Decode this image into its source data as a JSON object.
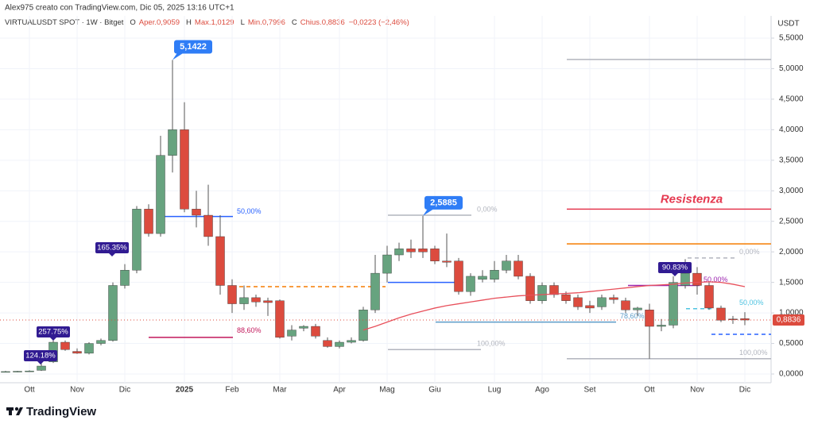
{
  "chart_data": {
    "type": "candlestick",
    "header": {
      "credit": "Alex975 creato con TradingView.com, Dic 05, 2025 13:16 UTC+1",
      "symbol": "VIRTUALUSDT SPOT · 1W · Bitget",
      "ohlc": [
        {
          "key": "O",
          "text": "Aper.0,9059"
        },
        {
          "key": "H",
          "text": "Max.1,0129"
        },
        {
          "key": "L",
          "text": "Min.0,7996"
        },
        {
          "key": "C",
          "text": "Chius.0,8836"
        }
      ],
      "change": "−0,0223 (−2,46%)"
    },
    "y_unit": "USDT",
    "brand": "TradingView",
    "categories": [
      null,
      null,
      "Ott",
      null,
      null,
      null,
      "Nov",
      null,
      null,
      null,
      "Dic",
      null,
      null,
      null,
      null,
      "2025",
      null,
      null,
      null,
      "Feb",
      null,
      null,
      null,
      "Mar",
      null,
      null,
      null,
      null,
      "Apr",
      null,
      null,
      null,
      "Mag",
      null,
      null,
      null,
      "Giu",
      null,
      null,
      null,
      null,
      "Lug",
      null,
      null,
      null,
      "Ago",
      null,
      null,
      null,
      "Set",
      null,
      null,
      null,
      null,
      "Ott",
      null,
      null,
      null,
      "Nov",
      null,
      null,
      null,
      "Dic"
    ],
    "open": [
      0.04,
      0.04,
      0.045,
      0.06,
      0.2,
      0.52,
      0.37,
      0.34,
      0.5,
      0.55,
      1.45,
      1.7,
      2.7,
      2.3,
      3.58,
      4.0,
      2.7,
      2.6,
      2.25,
      1.45,
      1.15,
      1.25,
      1.2,
      1.2,
      0.62,
      0.75,
      0.78,
      0.55,
      0.45,
      0.52,
      0.55,
      1.05,
      1.65,
      1.95,
      2.05,
      2.05,
      2.05,
      1.85,
      1.85,
      1.35,
      1.55,
      1.55,
      1.7,
      1.85,
      1.6,
      1.2,
      1.45,
      1.3,
      1.25,
      1.12,
      1.1,
      1.25,
      1.2,
      1.05,
      1.05,
      0.78,
      0.8,
      1.45,
      1.65,
      1.45,
      1.08,
      0.9,
      0.9059
    ],
    "high": [
      0.05,
      0.05,
      0.06,
      0.2,
      0.6,
      0.55,
      0.42,
      0.52,
      0.58,
      1.5,
      1.8,
      2.75,
      2.78,
      3.9,
      5.1422,
      4.45,
      3.0,
      3.1,
      2.6,
      1.55,
      1.45,
      1.3,
      1.25,
      1.22,
      0.8,
      0.8,
      0.82,
      0.6,
      0.55,
      0.6,
      1.1,
      1.95,
      2.1,
      2.15,
      2.2,
      2.5885,
      2.1,
      2.3,
      1.9,
      1.65,
      1.7,
      1.85,
      1.95,
      1.95,
      1.65,
      1.5,
      1.5,
      1.35,
      1.3,
      1.2,
      1.3,
      1.3,
      1.25,
      1.1,
      1.15,
      0.9,
      1.6,
      1.88,
      1.75,
      1.5,
      1.12,
      0.95,
      1.0129
    ],
    "low": [
      0.03,
      0.03,
      0.04,
      0.05,
      0.18,
      0.38,
      0.33,
      0.32,
      0.47,
      0.53,
      1.4,
      1.65,
      2.25,
      2.25,
      3.3,
      2.65,
      2.4,
      2.1,
      1.3,
      1.0,
      1.05,
      1.1,
      0.95,
      0.58,
      0.55,
      0.7,
      0.58,
      0.43,
      0.42,
      0.5,
      0.53,
      1.0,
      1.5,
      1.85,
      1.9,
      1.9,
      1.8,
      1.75,
      1.3,
      1.28,
      1.5,
      1.5,
      1.65,
      1.55,
      1.15,
      1.15,
      1.25,
      1.15,
      1.05,
      1.0,
      1.05,
      1.15,
      1.0,
      0.95,
      0.25,
      0.7,
      0.75,
      1.4,
      1.3,
      1.05,
      0.85,
      0.82,
      0.7996
    ],
    "close": [
      0.04,
      0.045,
      0.05,
      0.13,
      0.52,
      0.4,
      0.34,
      0.5,
      0.55,
      1.45,
      1.7,
      2.7,
      2.3,
      3.58,
      4.0,
      2.7,
      2.6,
      2.25,
      1.45,
      1.15,
      1.25,
      1.18,
      1.17,
      0.6,
      0.72,
      0.78,
      0.62,
      0.45,
      0.52,
      0.55,
      1.05,
      1.65,
      1.95,
      2.05,
      2.0,
      2.0,
      1.85,
      1.83,
      1.35,
      1.6,
      1.6,
      1.7,
      1.85,
      1.6,
      1.2,
      1.45,
      1.3,
      1.2,
      1.1,
      1.08,
      1.25,
      1.22,
      1.05,
      1.08,
      0.78,
      0.8,
      1.5,
      1.65,
      1.45,
      1.08,
      0.88,
      0.89,
      0.8836
    ],
    "up_color": "#67a37f",
    "down_color": "#dc4b3e",
    "ma": [
      null,
      null,
      null,
      null,
      null,
      null,
      null,
      null,
      null,
      null,
      null,
      null,
      null,
      null,
      null,
      null,
      null,
      null,
      null,
      null,
      null,
      null,
      null,
      null,
      null,
      null,
      null,
      null,
      null,
      null,
      0.72,
      0.78,
      0.85,
      0.92,
      0.98,
      1.03,
      1.08,
      1.12,
      1.15,
      1.18,
      1.21,
      1.24,
      1.26,
      1.28,
      1.29,
      1.3,
      1.31,
      1.32,
      1.33,
      1.35,
      1.37,
      1.39,
      1.41,
      1.43,
      1.45,
      1.46,
      1.47,
      1.49,
      1.5,
      1.51,
      1.5,
      1.47,
      1.43
    ],
    "ma_color": "#e8505b",
    "ylim": [
      -0.143,
      5.864
    ],
    "yticks": [
      {
        "value": 0,
        "label": "0,0000"
      },
      {
        "value": 0.5,
        "label": "0,5000"
      },
      {
        "value": 1,
        "label": "1,0000"
      },
      {
        "value": 1.5,
        "label": "1,5000"
      },
      {
        "value": 2,
        "label": "2,0000"
      },
      {
        "value": 2.5,
        "label": "2,5000"
      },
      {
        "value": 3,
        "label": "3,0000"
      },
      {
        "value": 3.5,
        "label": "3,5000"
      },
      {
        "value": 4,
        "label": "4,0000"
      },
      {
        "value": 4.5,
        "label": "4,5000"
      },
      {
        "value": 5,
        "label": "5,0000"
      },
      {
        "value": 5.5,
        "label": "5,5000"
      }
    ],
    "grid": true,
    "last_price": {
      "value": 0.8836,
      "label": "0,8836"
    },
    "levels": [
      {
        "value": 2.58,
        "color": "#2962ff",
        "style": "solid",
        "label": "50,00%"
      },
      {
        "value": 0.6,
        "color": "#c2185b",
        "style": "solid",
        "label": "88,60%"
      },
      {
        "value": 1.43,
        "color": "#f57c00",
        "style": "dashed"
      },
      {
        "value": 2.6,
        "color": "#b2b5be",
        "style": "solid",
        "label": "0,00%"
      },
      {
        "value": 0.4,
        "color": "#b2b5be",
        "style": "solid",
        "label": "100,00%"
      },
      {
        "value": 1.5,
        "color": "#2962ff",
        "style": "solid"
      },
      {
        "value": 0.85,
        "color": "#5b9bc8",
        "style": "solid",
        "label": "78,60%"
      },
      {
        "value": 5.15,
        "color": "#b2b5be",
        "style": "solid"
      },
      {
        "value": 2.7,
        "color": "#e53950",
        "style": "solid",
        "label": "Resistenza"
      },
      {
        "value": 2.13,
        "color": "#f57c00",
        "style": "solid"
      },
      {
        "value": 0.25,
        "color": "#b2b5be",
        "style": "solid",
        "label": "100,00%"
      },
      {
        "value": 1.45,
        "color": "#9c27b0",
        "style": "solid",
        "label": "50,00%"
      },
      {
        "value": 1.9,
        "color": "#b2b5be",
        "style": "dashed",
        "label": "0,00%"
      },
      {
        "value": 1.07,
        "color": "#4dc3e1",
        "style": "dashed",
        "label": "50,00%"
      },
      {
        "value": 0.65,
        "color": "#2962ff",
        "style": "dashed"
      }
    ],
    "callouts": [
      {
        "value": 5.1422,
        "label": "5,1422"
      },
      {
        "value": 2.5885,
        "label": "2,5885"
      }
    ],
    "badges": [
      "124.18%",
      "257.75%",
      "165.35%",
      "90.83%"
    ]
  }
}
